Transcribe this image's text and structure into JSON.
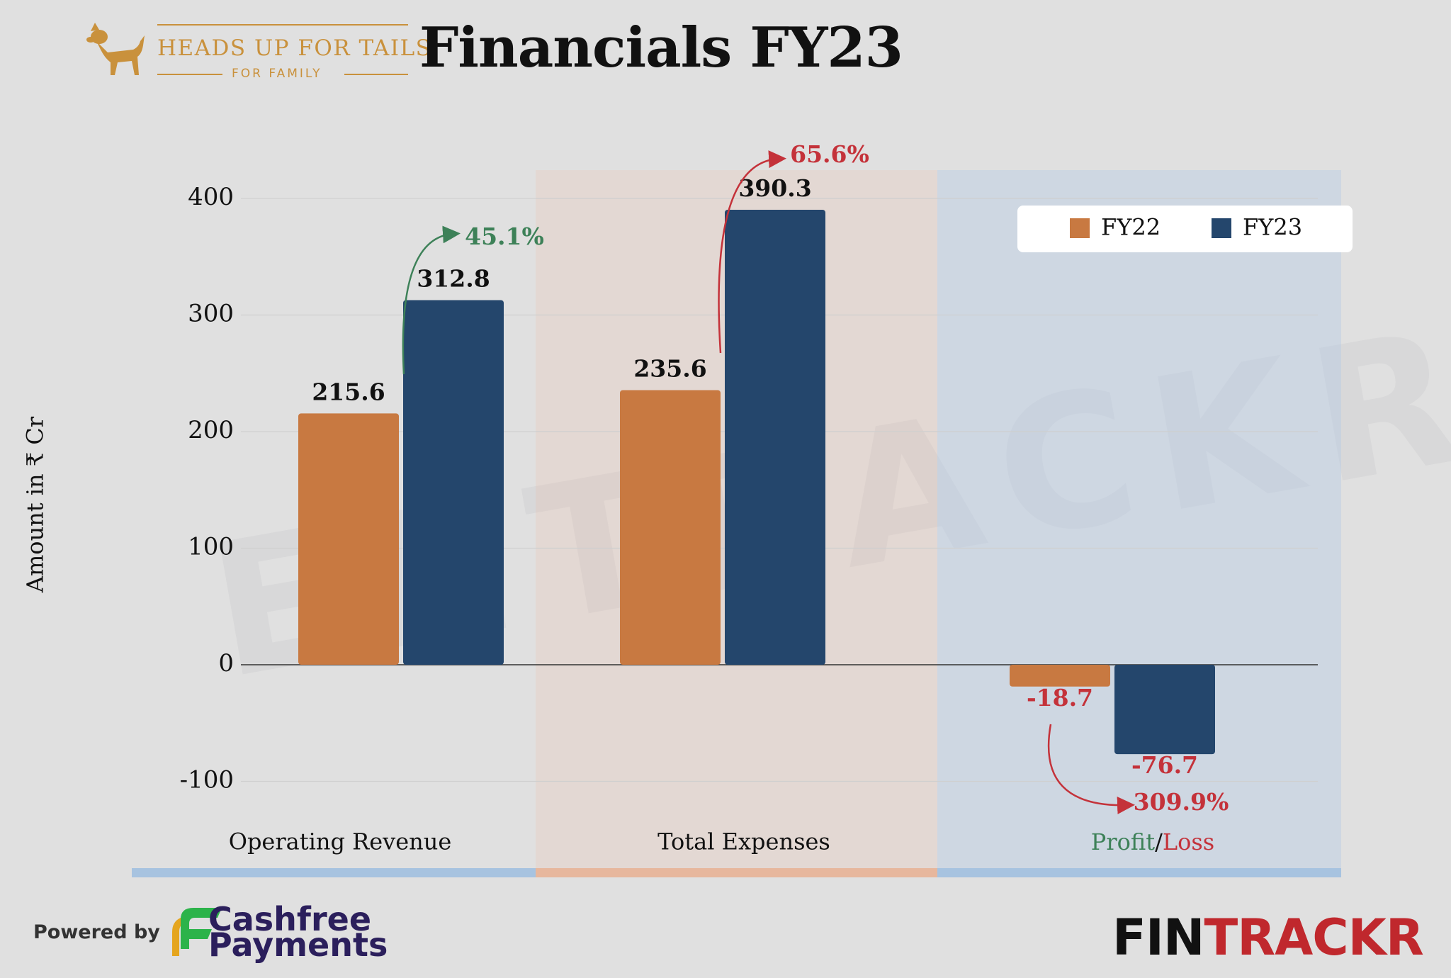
{
  "header": {
    "brand_name": "HEADS UP FOR TAILS",
    "brand_tagline": "FOR FAMILY",
    "title": "Financials FY23"
  },
  "footer": {
    "powered_by": "Powered by",
    "sponsor_line1": "Cashfree",
    "sponsor_line2": "Payments",
    "publisher_part1": "FIN",
    "publisher_part2": "TRACKR",
    "watermark": "ENTRACKR"
  },
  "colors": {
    "fy22": "#c87941",
    "fy23": "#24466c",
    "growth_green": "#3d8158",
    "growth_red": "#c4323a",
    "band_blue": "#a7c3e0",
    "band_peach": "#e7b79d"
  },
  "chart_data": {
    "type": "bar",
    "ylabel": "Amount in ₹ Cr",
    "ylim": [
      -100,
      400
    ],
    "yticks": [
      "400",
      "300",
      "200",
      "100",
      "0",
      "-100"
    ],
    "ytick_values": [
      400,
      300,
      200,
      100,
      0,
      -100
    ],
    "categories": [
      "Operating Revenue",
      "Total Expenses",
      "Profit/Loss"
    ],
    "category_profit": {
      "part1": "Profit",
      "sep": "/",
      "part2": "Loss"
    },
    "legend": {
      "position": "top-right"
    },
    "series": [
      {
        "name": "FY22",
        "values": [
          215.6,
          235.6,
          -18.7
        ],
        "labels": [
          "215.6",
          "235.6",
          "-18.7"
        ]
      },
      {
        "name": "FY23",
        "values": [
          312.8,
          390.3,
          -76.7
        ],
        "labels": [
          "312.8",
          "390.3",
          "-76.7"
        ]
      }
    ],
    "growth_labels": [
      "45.1%",
      "65.6%",
      "309.9%"
    ]
  }
}
